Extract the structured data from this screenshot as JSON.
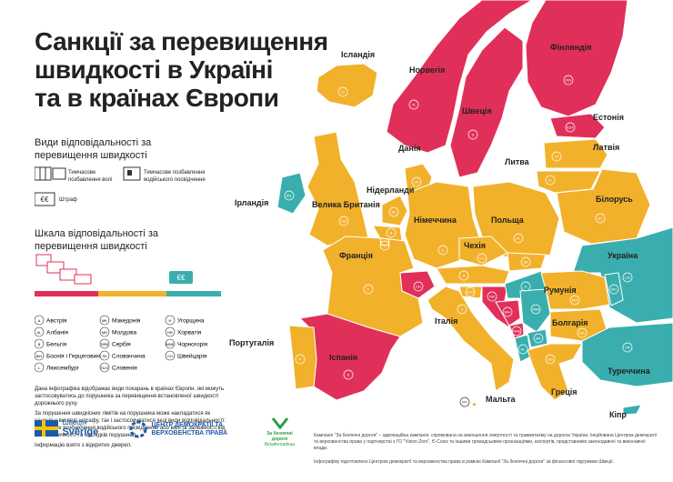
{
  "header": {
    "title": [
      "Санкції за перевищення",
      "швидкості в Україні",
      "та в країнах Європи"
    ]
  },
  "legend": {
    "title": "Види відповідальності за перевищення швидкості",
    "items": [
      {
        "label": "Тимчасове позбавлення волі"
      },
      {
        "label": "Тимчасове позбавлення водійського посвідчення"
      },
      {
        "label": "Штраф"
      }
    ]
  },
  "scale": {
    "title": "Шкала відповідальності за перевищення швидкості",
    "colors": [
      "#e0305a",
      "#f2b12b",
      "#3aaeae"
    ]
  },
  "codes": [
    {
      "code": "A",
      "name": "Австрія"
    },
    {
      "code": "AL",
      "name": "Албанія"
    },
    {
      "code": "B",
      "name": "Бельгія"
    },
    {
      "code": "BIH",
      "name": "Боснія і Герцеговина"
    },
    {
      "code": "L",
      "name": "Люксембург"
    },
    {
      "code": "MK",
      "name": "Македонія"
    },
    {
      "code": "MD",
      "name": "Молдова"
    },
    {
      "code": "SRB",
      "name": "Сербія"
    },
    {
      "code": "SK",
      "name": "Словаччина"
    },
    {
      "code": "SLO",
      "name": "Словенія"
    },
    {
      "code": "H",
      "name": "Угорщина"
    },
    {
      "code": "HR",
      "name": "Хорватія"
    },
    {
      "code": "MNE",
      "name": "Чорногорія"
    },
    {
      "code": "CH",
      "name": "Швейцарія"
    }
  ],
  "notes": [
    "Дана інфографіка відображає види покарань в країнах Європи, які можуть застосовуватись до порушника за перевищення встановленої швидкості дорожнього руху.",
    "За порушення швидкісних лімітів на порушника може накладатися як санкція у вигляді штрафу, так і застосовуватися інші види відповідальності: тимчасове позбавлення водійського посвідчення або волі (в залежності від систематичності та наслідків порушень).",
    "Інформацію взято з відкритих джерел."
  ],
  "footer": {
    "sweden": [
      "Швеція",
      "Sverige"
    ],
    "center": [
      "ЦЕНТР ДЕМОКРАТІЇ ТА",
      "ВЕРХОВЕНСТВА ПРАВА"
    ],
    "campaign": [
      "За безпечні дороги",
      "fb/saferoadsua"
    ],
    "text": [
      "Кампанія \"За безпечні дороги\" – адвокаційна кампанія, спрямована на зменшення смертності та травматизму на дорогах України. Ініційована Центром демократії та верховенства права у партнерстві з ГО \"Vision Zero\", Є-Союз та іншими громадськими організаціями, експертів, представників законодавчої та виконавчої влади.",
      "Інфографіку підготовлено Центром демократії та верховенства права в рамках Кампанії \"За безпечні дороги\" за фінансової підтримки Швеції."
    ]
  },
  "map": {
    "countries": [
      {
        "name": "Ісландія",
        "code": "IS",
        "color": "#f2b12b"
      },
      {
        "name": "Норвегія",
        "code": "N",
        "color": "#e0305a"
      },
      {
        "name": "Швеція",
        "code": "S",
        "color": "#e0305a"
      },
      {
        "name": "Фінляндія",
        "code": "FIN",
        "color": "#e0305a"
      },
      {
        "name": "Естонія",
        "code": "EST",
        "color": "#e0305a"
      },
      {
        "name": "Латвія",
        "code": "LV",
        "color": "#f2b12b"
      },
      {
        "name": "Литва",
        "code": "LT",
        "color": "#f2b12b"
      },
      {
        "name": "Білорусь",
        "code": "BY",
        "color": "#f2b12b"
      },
      {
        "name": "Україна",
        "code": "UA",
        "color": "#3aaeae"
      },
      {
        "name": "Данія",
        "code": "DK",
        "color": "#f2b12b"
      },
      {
        "name": "Ірландія",
        "code": "IRL",
        "color": "#3aaeae"
      },
      {
        "name": "Велика Британія",
        "code": "GB",
        "color": "#f2b12b"
      },
      {
        "name": "Нідерланди",
        "code": "NL",
        "color": "#f2b12b"
      },
      {
        "code": "B",
        "color": "#f2b12b"
      },
      {
        "name": "Німеччина",
        "code": "D",
        "color": "#f2b12b"
      },
      {
        "name": "Польща",
        "code": "PL",
        "color": "#f2b12b"
      },
      {
        "name": "Чехія",
        "code": "CZ",
        "color": "#f2b12b"
      },
      {
        "code": "SK",
        "color": "#f2b12b"
      },
      {
        "code": "A",
        "color": "#f2b12b"
      },
      {
        "code": "CH",
        "color": "#e0305a"
      },
      {
        "name": "Франція",
        "code": "F",
        "color": "#f2b12b"
      },
      {
        "name": "Італія",
        "code": "I",
        "color": "#f2b12b"
      },
      {
        "code": "SLO",
        "color": "#f2b12b"
      },
      {
        "code": "HR",
        "color": "#e0305a"
      },
      {
        "code": "H",
        "color": "#3aaeae"
      },
      {
        "code": "BIH",
        "color": "#e0305a"
      },
      {
        "code": "SRB",
        "color": "#3aaeae"
      },
      {
        "code": "MNE",
        "color": "#e0305a"
      },
      {
        "code": "AL",
        "color": "#3aaeae"
      },
      {
        "code": "MK",
        "color": "#3aaeae"
      },
      {
        "name": "Румунія",
        "code": "RO",
        "color": "#f2b12b"
      },
      {
        "code": "MD",
        "color": "#3aaeae"
      },
      {
        "name": "Болгарія",
        "code": "BG",
        "color": "#f2b12b"
      },
      {
        "name": "Греція",
        "code": "GR",
        "color": "#f2b12b"
      },
      {
        "name": "Туреччина",
        "code": "TR",
        "color": "#3aaeae"
      },
      {
        "name": "Кіпр",
        "code": "CY",
        "color": "#3aaeae"
      },
      {
        "name": "Іспанія",
        "code": "E",
        "color": "#e0305a"
      },
      {
        "name": "Португалія",
        "code": "P",
        "color": "#f2b12b"
      },
      {
        "name": "Мальта",
        "code": "MT",
        "color": "#f2b12b"
      },
      {
        "code": "L",
        "color": "#f2b12b"
      }
    ]
  }
}
